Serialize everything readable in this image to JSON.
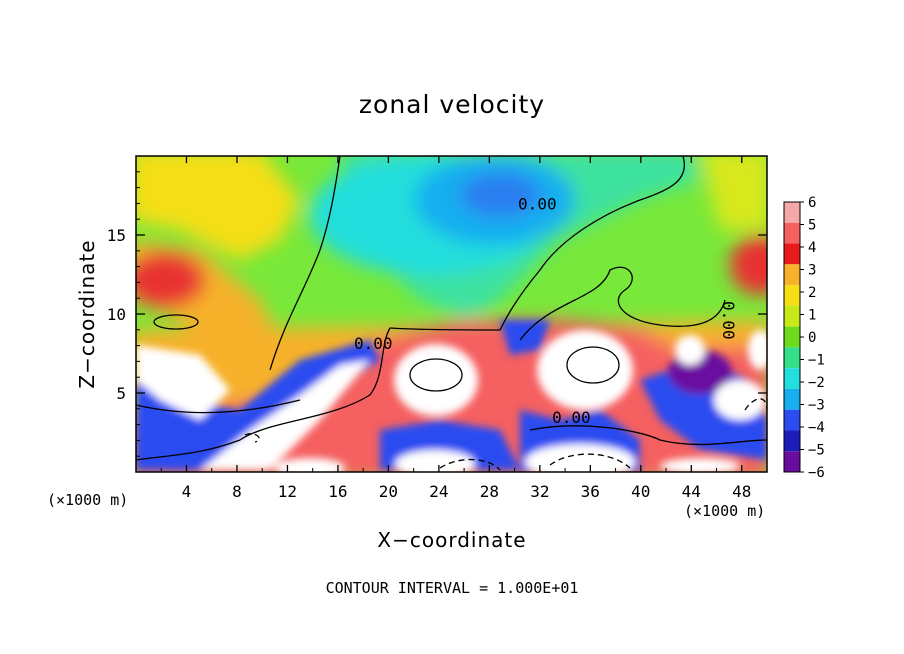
{
  "chart_data": {
    "type": "heatmap",
    "title": "zonal velocity",
    "xlabel": "X−coordinate",
    "ylabel": "Z−coordinate",
    "x_units": "(×1000 m)",
    "y_units": "(×1000 m)",
    "xlim": [
      0,
      50
    ],
    "ylim": [
      0,
      20
    ],
    "x_ticks": [
      4,
      8,
      12,
      16,
      20,
      24,
      28,
      32,
      36,
      40,
      44,
      48
    ],
    "y_ticks": [
      5,
      10,
      15
    ],
    "colorbar": {
      "ticks": [
        "6",
        "5",
        "4",
        "3",
        "2",
        "1",
        "0",
        "−1",
        "−2",
        "−3",
        "−4",
        "−5",
        "−6"
      ],
      "range": [
        -6,
        6
      ],
      "colors": [
        "#f4a8a8",
        "#f56060",
        "#e81a1a",
        "#f7b12a",
        "#f5de14",
        "#c8e81a",
        "#6fdb1e",
        "#36e08a",
        "#22dedc",
        "#18aef0",
        "#2a4cf0",
        "#1c1cb8",
        "#6a0ca0"
      ]
    },
    "contour_labels": [
      {
        "text": "0.00",
        "x": 31.8,
        "z": 16.6
      },
      {
        "text": "0.00",
        "x": 18.8,
        "z": 7.8
      },
      {
        "text": "0.00",
        "x": 34.5,
        "z": 3.1
      },
      {
        "text": "0.00",
        "x": 46.5,
        "z": 9.6
      }
    ],
    "footnote": "CONTOUR INTERVAL = 1.000E+01"
  }
}
